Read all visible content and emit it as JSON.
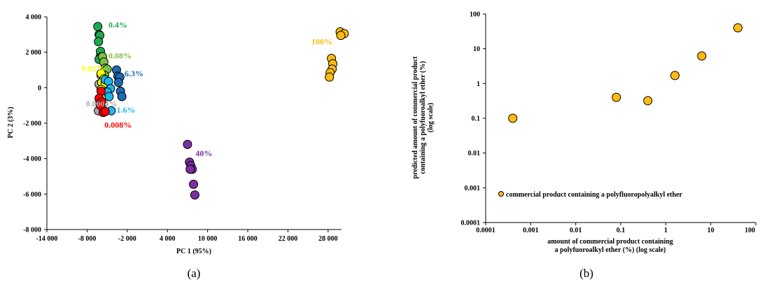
{
  "chart_data": [
    {
      "panel": "(a)",
      "type": "scatter",
      "xlabel": "PC 1 (95%)",
      "ylabel": "PC 2 (3%)",
      "xlim": [
        -14000,
        30000
      ],
      "ylim": [
        -8000,
        4000
      ],
      "x_ticks": [
        -14000,
        -8000,
        -2000,
        4000,
        10000,
        16000,
        22000,
        28000
      ],
      "x_tick_labels": [
        "-14 000",
        "-8 000",
        "-2 000",
        "4 000",
        "10 000",
        "16 000",
        "22 000",
        "28 000"
      ],
      "y_ticks": [
        4000,
        2000,
        0,
        -2000,
        -4000,
        -6000,
        -8000
      ],
      "y_tick_labels": [
        "4 000",
        "2 000",
        "0",
        "-2 000",
        "-4 000",
        "-6 000",
        "-8 000"
      ],
      "series": [
        {
          "name": "0.0004%",
          "color": "#aaaaaa",
          "points": [
            [
              -6000,
              1800
            ],
            [
              -5600,
              1500
            ],
            [
              -5900,
              700
            ],
            [
              -6200,
              200
            ],
            [
              -5700,
              -300
            ],
            [
              -6100,
              -700
            ],
            [
              -5800,
              -1100
            ],
            [
              -6300,
              -1300
            ]
          ]
        },
        {
          "name": "0.4%",
          "color": "#1daa4f",
          "points": [
            [
              -6400,
              3450
            ],
            [
              -6200,
              3000
            ],
            [
              -6100,
              2950
            ],
            [
              -6300,
              2600
            ],
            [
              -6000,
              2050
            ],
            [
              -5800,
              1750
            ],
            [
              -6200,
              1600
            ]
          ]
        },
        {
          "name": "0.08%",
          "color": "#7dc241",
          "points": [
            [
              -5700,
              1750
            ],
            [
              -5500,
              1450
            ],
            [
              -5300,
              1100
            ],
            [
              -5000,
              1050
            ],
            [
              -5400,
              700
            ]
          ]
        },
        {
          "name": "0.02%",
          "color": "#ffff00",
          "points": [
            [
              -5900,
              800
            ],
            [
              -5500,
              500
            ],
            [
              -5800,
              300
            ],
            [
              -5300,
              250
            ],
            [
              -5900,
              -100
            ],
            [
              -5400,
              -400
            ]
          ]
        },
        {
          "name": "6.3%",
          "color": "#1d6bb5",
          "points": [
            [
              -3600,
              1000
            ],
            [
              -3400,
              650
            ],
            [
              -3100,
              600
            ],
            [
              -3300,
              300
            ],
            [
              -3000,
              -200
            ],
            [
              -2800,
              -500
            ]
          ]
        },
        {
          "name": "1.6%",
          "color": "#1fb5ee",
          "points": [
            [
              -5300,
              450
            ],
            [
              -4800,
              350
            ],
            [
              -4500,
              -50
            ],
            [
              -5000,
              -250
            ],
            [
              -4700,
              -500
            ],
            [
              -4400,
              -1300
            ]
          ]
        },
        {
          "name": "0.008%",
          "color": "#ff0000",
          "points": [
            [
              -5900,
              -200
            ],
            [
              -6200,
              -600
            ],
            [
              -5800,
              -800
            ],
            [
              -6000,
              -1000
            ],
            [
              -5600,
              -1400
            ],
            [
              -5300,
              -1350
            ]
          ]
        },
        {
          "name": "40%",
          "color": "#7b2fa1",
          "points": [
            [
              7000,
              -3200
            ],
            [
              7300,
              -4200
            ],
            [
              7500,
              -4400
            ],
            [
              7700,
              -4600
            ],
            [
              7400,
              -4600
            ],
            [
              7900,
              -5450
            ],
            [
              8100,
              -6050
            ]
          ]
        },
        {
          "name": "100%",
          "color": "#ffbb10",
          "points": [
            [
              29800,
              3150
            ],
            [
              30400,
              3050
            ],
            [
              29900,
              2950
            ],
            [
              28500,
              1650
            ],
            [
              28700,
              1350
            ],
            [
              28600,
              1050
            ],
            [
              28300,
              850
            ],
            [
              28200,
              600
            ]
          ]
        }
      ]
    },
    {
      "panel": "(b)",
      "type": "scatter",
      "xlabel": [
        "amount of commercial product containing",
        "a polyfuoroalkyl ether (%) (log scale)"
      ],
      "ylabel": [
        "predicted amount of commercial product",
        "containing a polyfuoroalkyl ether (%)",
        "(log scale)"
      ],
      "x_scale": "log",
      "y_scale": "log",
      "xlim": [
        0.0001,
        100
      ],
      "ylim": [
        0.0001,
        100
      ],
      "x_ticks": [
        0.0001,
        0.001,
        0.01,
        0.1,
        1,
        10,
        100
      ],
      "x_tick_labels": [
        "0.0001",
        "0.001",
        "0.01",
        "0.1",
        "1",
        "10",
        "100"
      ],
      "y_ticks": [
        100,
        10,
        1,
        0.1,
        0.01,
        0.001,
        0.0001
      ],
      "y_tick_labels": [
        "100",
        "10",
        "1",
        "0.1",
        "0.01",
        "0.001",
        "0.0001"
      ],
      "legend": "bottom-left",
      "series": [
        {
          "name": "commercial product containing a polyfluoropolyalkyl ether",
          "color": "#ffbb10",
          "x": [
            0.0004,
            0.08,
            0.4,
            1.6,
            6.3,
            40
          ],
          "y": [
            0.1,
            0.4,
            0.32,
            1.7,
            6.2,
            40
          ]
        }
      ]
    }
  ]
}
